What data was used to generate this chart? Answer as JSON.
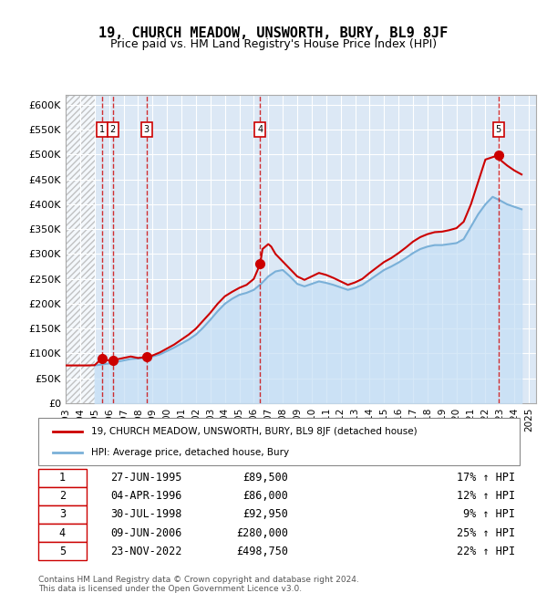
{
  "title": "19, CHURCH MEADOW, UNSWORTH, BURY, BL9 8JF",
  "subtitle": "Price paid vs. HM Land Registry's House Price Index (HPI)",
  "ylabel": "",
  "xlabel": "",
  "ylim": [
    0,
    620000
  ],
  "yticks": [
    0,
    50000,
    100000,
    150000,
    200000,
    250000,
    300000,
    350000,
    400000,
    450000,
    500000,
    550000,
    600000
  ],
  "ytick_labels": [
    "£0",
    "£50K",
    "£100K",
    "£150K",
    "£200K",
    "£250K",
    "£300K",
    "£350K",
    "£400K",
    "£450K",
    "£500K",
    "£550K",
    "£600K"
  ],
  "xlim_start": 1993.0,
  "xlim_end": 2025.5,
  "hpi_color": "#a8c8e8",
  "price_color": "#cc0000",
  "hatch_color": "#cccccc",
  "background_color": "#ffffff",
  "grid_color": "#cccccc",
  "sale_points": [
    {
      "num": 1,
      "year": 1995.49,
      "price": 89500
    },
    {
      "num": 2,
      "year": 1996.26,
      "price": 86000
    },
    {
      "num": 3,
      "year": 1998.58,
      "price": 92950
    },
    {
      "num": 4,
      "year": 2006.44,
      "price": 280000
    },
    {
      "num": 5,
      "year": 2022.9,
      "price": 498750
    }
  ],
  "hpi_line": {
    "x": [
      1995,
      1995.5,
      1996,
      1996.5,
      1997,
      1997.5,
      1998,
      1998.5,
      1999,
      1999.5,
      2000,
      2000.5,
      2001,
      2001.5,
      2002,
      2002.5,
      2003,
      2003.5,
      2004,
      2004.5,
      2005,
      2005.5,
      2006,
      2006.5,
      2007,
      2007.5,
      2008,
      2008.5,
      2009,
      2009.5,
      2010,
      2010.5,
      2011,
      2011.5,
      2012,
      2012.5,
      2013,
      2013.5,
      2014,
      2014.5,
      2015,
      2015.5,
      2016,
      2016.5,
      2017,
      2017.5,
      2018,
      2018.5,
      2019,
      2019.5,
      2020,
      2020.5,
      2021,
      2021.5,
      2022,
      2022.5,
      2023,
      2023.5,
      2024,
      2024.5
    ],
    "y": [
      76000,
      78000,
      80000,
      83000,
      86000,
      89000,
      90000,
      91000,
      94000,
      98000,
      105000,
      112000,
      120000,
      128000,
      138000,
      152000,
      168000,
      185000,
      200000,
      210000,
      218000,
      222000,
      228000,
      240000,
      255000,
      265000,
      268000,
      255000,
      240000,
      235000,
      240000,
      245000,
      242000,
      238000,
      233000,
      228000,
      232000,
      238000,
      248000,
      258000,
      268000,
      275000,
      283000,
      292000,
      302000,
      310000,
      315000,
      318000,
      318000,
      320000,
      322000,
      330000,
      355000,
      380000,
      400000,
      415000,
      408000,
      400000,
      395000,
      390000
    ]
  },
  "price_line": {
    "x": [
      1993,
      1993.5,
      1994,
      1994.5,
      1995,
      1995.49,
      1995.6,
      1996,
      1996.26,
      1996.5,
      1997,
      1997.5,
      1998,
      1998.58,
      1999,
      1999.5,
      2000,
      2000.5,
      2001,
      2001.5,
      2002,
      2002.5,
      2003,
      2003.5,
      2004,
      2004.5,
      2005,
      2005.5,
      2006,
      2006.44,
      2006.6,
      2007,
      2007.2,
      2007.5,
      2008,
      2008.5,
      2009,
      2009.5,
      2010,
      2010.5,
      2011,
      2011.5,
      2012,
      2012.5,
      2013,
      2013.5,
      2014,
      2014.5,
      2015,
      2015.5,
      2016,
      2016.5,
      2017,
      2017.5,
      2018,
      2018.5,
      2019,
      2019.5,
      2020,
      2020.5,
      2021,
      2021.5,
      2022,
      2022.9,
      2023,
      2023.5,
      2024,
      2024.5
    ],
    "y": [
      76000,
      76000,
      76000,
      76000,
      76500,
      89500,
      88000,
      86000,
      86000,
      88000,
      91000,
      94000,
      91000,
      92950,
      96000,
      102000,
      110000,
      118000,
      128000,
      138000,
      150000,
      166000,
      182000,
      200000,
      215000,
      224000,
      232000,
      238000,
      250000,
      280000,
      310000,
      320000,
      315000,
      300000,
      285000,
      270000,
      255000,
      248000,
      255000,
      262000,
      258000,
      252000,
      245000,
      238000,
      243000,
      250000,
      262000,
      273000,
      284000,
      292000,
      302000,
      313000,
      325000,
      334000,
      340000,
      344000,
      345000,
      348000,
      352000,
      365000,
      400000,
      445000,
      490000,
      498750,
      490000,
      478000,
      468000,
      460000
    ]
  },
  "legend_line1": "19, CHURCH MEADOW, UNSWORTH, BURY, BL9 8JF (detached house)",
  "legend_line2": "HPI: Average price, detached house, Bury",
  "table_data": [
    [
      "1",
      "27-JUN-1995",
      "£89,500",
      "17% ↑ HPI"
    ],
    [
      "2",
      "04-APR-1996",
      "£86,000",
      "12% ↑ HPI"
    ],
    [
      "3",
      "30-JUL-1998",
      "£92,950",
      "9% ↑ HPI"
    ],
    [
      "4",
      "09-JUN-2006",
      "£280,000",
      "25% ↑ HPI"
    ],
    [
      "5",
      "23-NOV-2022",
      "£498,750",
      "22% ↑ HPI"
    ]
  ],
  "footnote": "Contains HM Land Registry data © Crown copyright and database right 2024.\nThis data is licensed under the Open Government Licence v3.0.",
  "hatch_end_year": 1995.0,
  "vertical_line_years": [
    1995.49,
    1996.26,
    1998.58,
    2006.44,
    2022.9
  ]
}
